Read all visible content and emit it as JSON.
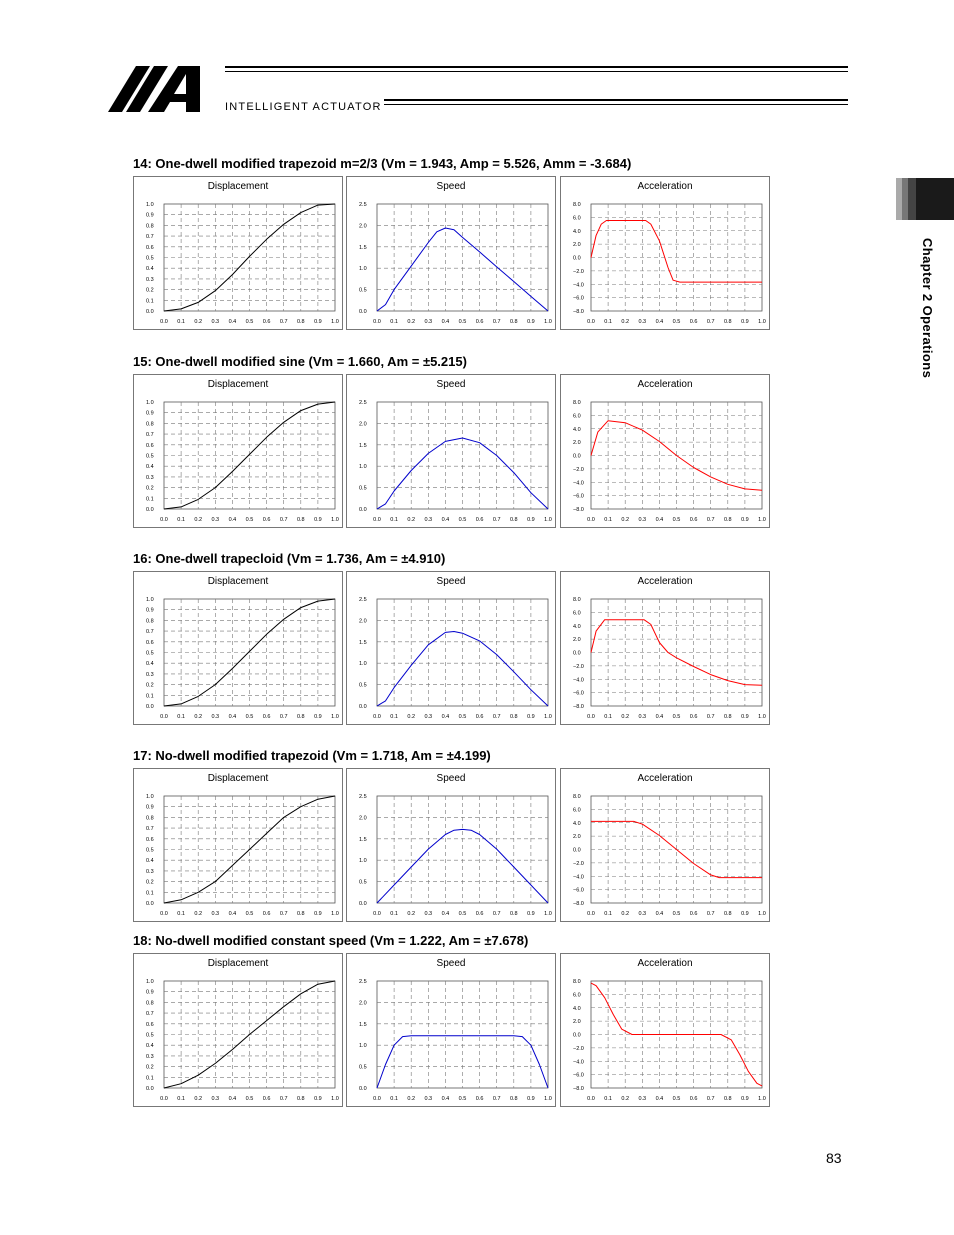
{
  "header": {
    "brand_text": "INTELLIGENT ACTUATOR",
    "logo_icon": "iai-logo-icon"
  },
  "sidebar": {
    "chapter_label": "Chapter 2 Operations"
  },
  "page_number": "83",
  "sections": [
    {
      "title": "14: One-dwell modified trapezoid m=2/3 (Vm = 1.943, Amp = 5.526, Amm = -3.684)"
    },
    {
      "title": "15: One-dwell modified sine (Vm = 1.660, Am = ±5.215)"
    },
    {
      "title": "16: One-dwell trapecloid (Vm = 1.736, Am = ±4.910)"
    },
    {
      "title": "17: No-dwell modified trapezoid (Vm = 1.718, Am = ±4.199)"
    },
    {
      "title": "18: No-dwell modified constant speed (Vm = 1.222, Am = ±7.678)"
    }
  ],
  "chart_data": [
    {
      "type": "line",
      "title": "Displacement",
      "xlim": [
        0,
        1
      ],
      "ylim": [
        0,
        1
      ],
      "color": "#000000",
      "xticks": [
        "0.0",
        "0.1",
        "0.2",
        "0.3",
        "0.4",
        "0.5",
        "0.6",
        "0.7",
        "0.8",
        "0.9",
        "1.0"
      ],
      "yticks": [
        "0.0",
        "0.1",
        "0.2",
        "0.3",
        "0.4",
        "0.5",
        "0.6",
        "0.7",
        "0.8",
        "0.9",
        "1.0"
      ],
      "x": [
        0,
        0.1,
        0.2,
        0.3,
        0.4,
        0.5,
        0.6,
        0.7,
        0.8,
        0.9,
        1.0
      ],
      "y": [
        0,
        0.02,
        0.08,
        0.19,
        0.34,
        0.51,
        0.67,
        0.81,
        0.92,
        0.99,
        1.0
      ]
    },
    {
      "type": "line",
      "title": "Speed",
      "xlim": [
        0,
        1
      ],
      "ylim": [
        0,
        2.5
      ],
      "color": "#0000cc",
      "xticks": [
        "0.0",
        "0.1",
        "0.2",
        "0.3",
        "0.4",
        "0.5",
        "0.6",
        "0.7",
        "0.8",
        "0.9",
        "1.0"
      ],
      "yticks": [
        "0.0",
        "0.5",
        "1.0",
        "1.5",
        "2.0",
        "2.5"
      ],
      "x": [
        0,
        0.05,
        0.1,
        0.2,
        0.3,
        0.35,
        0.4,
        0.45,
        0.5,
        0.6,
        0.7,
        0.8,
        0.9,
        1.0
      ],
      "y": [
        0,
        0.15,
        0.5,
        1.05,
        1.6,
        1.85,
        1.94,
        1.9,
        1.72,
        1.38,
        1.03,
        0.69,
        0.34,
        0
      ]
    },
    {
      "type": "line",
      "title": "Acceleration",
      "xlim": [
        0,
        1
      ],
      "ylim": [
        -8,
        8
      ],
      "color": "#ff0000",
      "xticks": [
        "0.0",
        "0.1",
        "0.2",
        "0.3",
        "0.4",
        "0.5",
        "0.6",
        "0.7",
        "0.8",
        "0.9",
        "1.0"
      ],
      "yticks": [
        "8.0",
        "6.0",
        "4.0",
        "2.0",
        "0.0",
        "−2.0",
        "−4.0",
        "−6.0",
        "−8.0"
      ],
      "x": [
        0,
        0.03,
        0.06,
        0.09,
        0.32,
        0.35,
        0.4,
        0.45,
        0.48,
        0.52,
        0.6,
        0.8,
        1.0
      ],
      "y": [
        0,
        3.3,
        5.0,
        5.53,
        5.53,
        5.0,
        2.5,
        -1.5,
        -3.4,
        -3.68,
        -3.68,
        -3.68,
        -3.68
      ]
    },
    {
      "type": "line",
      "title": "Displacement",
      "xlim": [
        0,
        1
      ],
      "ylim": [
        0,
        1
      ],
      "color": "#000000",
      "xticks": [
        "0.0",
        "0.1",
        "0.2",
        "0.3",
        "0.4",
        "0.5",
        "0.6",
        "0.7",
        "0.8",
        "0.9",
        "1.0"
      ],
      "yticks": [
        "0.0",
        "0.1",
        "0.2",
        "0.3",
        "0.4",
        "0.5",
        "0.6",
        "0.7",
        "0.8",
        "0.9",
        "1.0"
      ],
      "x": [
        0,
        0.1,
        0.2,
        0.3,
        0.4,
        0.5,
        0.6,
        0.7,
        0.8,
        0.9,
        1.0
      ],
      "y": [
        0,
        0.02,
        0.09,
        0.2,
        0.35,
        0.51,
        0.67,
        0.81,
        0.92,
        0.98,
        1.0
      ]
    },
    {
      "type": "line",
      "title": "Speed",
      "xlim": [
        0,
        1
      ],
      "ylim": [
        0,
        2.5
      ],
      "color": "#0000cc",
      "xticks": [
        "0.0",
        "0.1",
        "0.2",
        "0.3",
        "0.4",
        "0.5",
        "0.6",
        "0.7",
        "0.8",
        "0.9",
        "1.0"
      ],
      "yticks": [
        "0.0",
        "0.5",
        "1.0",
        "1.5",
        "2.0",
        "2.5"
      ],
      "x": [
        0,
        0.05,
        0.1,
        0.2,
        0.3,
        0.4,
        0.5,
        0.6,
        0.7,
        0.8,
        0.9,
        1.0
      ],
      "y": [
        0,
        0.12,
        0.42,
        0.9,
        1.3,
        1.58,
        1.66,
        1.55,
        1.25,
        0.85,
        0.38,
        0
      ]
    },
    {
      "type": "line",
      "title": "Acceleration",
      "xlim": [
        0,
        1
      ],
      "ylim": [
        -8,
        8
      ],
      "color": "#ff0000",
      "xticks": [
        "0.0",
        "0.1",
        "0.2",
        "0.3",
        "0.4",
        "0.5",
        "0.6",
        "0.7",
        "0.8",
        "0.9",
        "1.0"
      ],
      "yticks": [
        "8.0",
        "6.0",
        "4.0",
        "2.0",
        "0.0",
        "−2.0",
        "−4.0",
        "−6.0",
        "−8.0"
      ],
      "x": [
        0,
        0.04,
        0.1,
        0.2,
        0.3,
        0.4,
        0.5,
        0.6,
        0.7,
        0.8,
        0.9,
        1.0
      ],
      "y": [
        0,
        3.5,
        5.2,
        4.9,
        3.8,
        2.1,
        0,
        -1.8,
        -3.2,
        -4.3,
        -5.0,
        -5.2
      ]
    },
    {
      "type": "line",
      "title": "Displacement",
      "xlim": [
        0,
        1
      ],
      "ylim": [
        0,
        1
      ],
      "color": "#000000",
      "xticks": [
        "0.0",
        "0.1",
        "0.2",
        "0.3",
        "0.4",
        "0.5",
        "0.6",
        "0.7",
        "0.8",
        "0.9",
        "1.0"
      ],
      "yticks": [
        "0.0",
        "0.1",
        "0.2",
        "0.3",
        "0.4",
        "0.5",
        "0.6",
        "0.7",
        "0.8",
        "0.9",
        "1.0"
      ],
      "x": [
        0,
        0.1,
        0.2,
        0.3,
        0.4,
        0.5,
        0.6,
        0.7,
        0.8,
        0.9,
        1.0
      ],
      "y": [
        0,
        0.02,
        0.09,
        0.2,
        0.35,
        0.51,
        0.67,
        0.81,
        0.92,
        0.98,
        1.0
      ]
    },
    {
      "type": "line",
      "title": "Speed",
      "xlim": [
        0,
        1
      ],
      "ylim": [
        0,
        2.5
      ],
      "color": "#0000cc",
      "xticks": [
        "0.0",
        "0.1",
        "0.2",
        "0.3",
        "0.4",
        "0.5",
        "0.6",
        "0.7",
        "0.8",
        "0.9",
        "1.0"
      ],
      "yticks": [
        "0.0",
        "0.5",
        "1.0",
        "1.5",
        "2.0",
        "2.5"
      ],
      "x": [
        0,
        0.05,
        0.1,
        0.2,
        0.3,
        0.4,
        0.45,
        0.5,
        0.6,
        0.7,
        0.8,
        0.9,
        1.0
      ],
      "y": [
        0,
        0.12,
        0.43,
        0.95,
        1.43,
        1.72,
        1.74,
        1.7,
        1.52,
        1.2,
        0.8,
        0.38,
        0
      ]
    },
    {
      "type": "line",
      "title": "Acceleration",
      "xlim": [
        0,
        1
      ],
      "ylim": [
        -8,
        8
      ],
      "color": "#ff0000",
      "xticks": [
        "0.0",
        "0.1",
        "0.2",
        "0.3",
        "0.4",
        "0.5",
        "0.6",
        "0.7",
        "0.8",
        "0.9",
        "1.0"
      ],
      "yticks": [
        "8.0",
        "6.0",
        "4.0",
        "2.0",
        "0.0",
        "−2.0",
        "−4.0",
        "−6.0",
        "−8.0"
      ],
      "x": [
        0,
        0.03,
        0.08,
        0.31,
        0.35,
        0.4,
        0.45,
        0.5,
        0.6,
        0.7,
        0.8,
        0.9,
        1.0
      ],
      "y": [
        0,
        3.2,
        4.9,
        4.9,
        4.2,
        1.5,
        0,
        -0.8,
        -2.1,
        -3.3,
        -4.2,
        -4.8,
        -4.91
      ]
    },
    {
      "type": "line",
      "title": "Displacement",
      "xlim": [
        0,
        1
      ],
      "ylim": [
        0,
        1
      ],
      "color": "#000000",
      "xticks": [
        "0.0",
        "0.1",
        "0.2",
        "0.3",
        "0.4",
        "0.5",
        "0.6",
        "0.7",
        "0.8",
        "0.9",
        "1.0"
      ],
      "yticks": [
        "0.0",
        "0.1",
        "0.2",
        "0.3",
        "0.4",
        "0.5",
        "0.6",
        "0.7",
        "0.8",
        "0.9",
        "1.0"
      ],
      "x": [
        0,
        0.1,
        0.2,
        0.3,
        0.4,
        0.5,
        0.6,
        0.7,
        0.8,
        0.9,
        1.0
      ],
      "y": [
        0,
        0.03,
        0.1,
        0.2,
        0.35,
        0.5,
        0.65,
        0.8,
        0.9,
        0.97,
        1.0
      ]
    },
    {
      "type": "line",
      "title": "Speed",
      "xlim": [
        0,
        1
      ],
      "ylim": [
        0,
        2.5
      ],
      "color": "#0000cc",
      "xticks": [
        "0.0",
        "0.1",
        "0.2",
        "0.3",
        "0.4",
        "0.5",
        "0.6",
        "0.7",
        "0.8",
        "0.9",
        "1.0"
      ],
      "yticks": [
        "0.0",
        "0.5",
        "1.0",
        "1.5",
        "2.0",
        "2.5"
      ],
      "x": [
        0,
        0.1,
        0.2,
        0.3,
        0.4,
        0.45,
        0.5,
        0.55,
        0.6,
        0.7,
        0.8,
        0.9,
        1.0
      ],
      "y": [
        0,
        0.42,
        0.84,
        1.26,
        1.6,
        1.7,
        1.72,
        1.7,
        1.6,
        1.26,
        0.84,
        0.42,
        0
      ]
    },
    {
      "type": "line",
      "title": "Acceleration",
      "xlim": [
        0,
        1
      ],
      "ylim": [
        -8,
        8
      ],
      "color": "#ff0000",
      "xticks": [
        "0.0",
        "0.1",
        "0.2",
        "0.3",
        "0.4",
        "0.5",
        "0.6",
        "0.7",
        "0.8",
        "0.9",
        "1.0"
      ],
      "yticks": [
        "8.0",
        "6.0",
        "4.0",
        "2.0",
        "0.0",
        "−2.0",
        "−4.0",
        "−6.0",
        "−8.0"
      ],
      "x": [
        0,
        0.1,
        0.2,
        0.25,
        0.3,
        0.4,
        0.5,
        0.6,
        0.7,
        0.75,
        0.8,
        0.9,
        1.0
      ],
      "y": [
        4.2,
        4.2,
        4.2,
        4.2,
        3.8,
        2.1,
        0,
        -2.1,
        -3.8,
        -4.2,
        -4.2,
        -4.2,
        -4.2
      ]
    },
    {
      "type": "line",
      "title": "Displacement",
      "xlim": [
        0,
        1
      ],
      "ylim": [
        0,
        1
      ],
      "color": "#000000",
      "xticks": [
        "0.0",
        "0.1",
        "0.2",
        "0.3",
        "0.4",
        "0.5",
        "0.6",
        "0.7",
        "0.8",
        "0.9",
        "1.0"
      ],
      "yticks": [
        "0.0",
        "0.1",
        "0.2",
        "0.3",
        "0.4",
        "0.5",
        "0.6",
        "0.7",
        "0.8",
        "0.9",
        "1.0"
      ],
      "x": [
        0,
        0.1,
        0.2,
        0.3,
        0.4,
        0.5,
        0.6,
        0.7,
        0.8,
        0.9,
        1.0
      ],
      "y": [
        0,
        0.04,
        0.12,
        0.23,
        0.36,
        0.5,
        0.63,
        0.76,
        0.88,
        0.97,
        1.0
      ]
    },
    {
      "type": "line",
      "title": "Speed",
      "xlim": [
        0,
        1
      ],
      "ylim": [
        0,
        2.5
      ],
      "color": "#0000cc",
      "xticks": [
        "0.0",
        "0.1",
        "0.2",
        "0.3",
        "0.4",
        "0.5",
        "0.6",
        "0.7",
        "0.8",
        "0.9",
        "1.0"
      ],
      "yticks": [
        "0.0",
        "0.5",
        "1.0",
        "1.5",
        "2.0",
        "2.5"
      ],
      "x": [
        0,
        0.05,
        0.1,
        0.15,
        0.2,
        0.5,
        0.8,
        0.85,
        0.9,
        0.95,
        1.0
      ],
      "y": [
        0,
        0.55,
        1.0,
        1.2,
        1.222,
        1.222,
        1.222,
        1.2,
        1.0,
        0.55,
        0
      ]
    },
    {
      "type": "line",
      "title": "Acceleration",
      "xlim": [
        0,
        1
      ],
      "ylim": [
        -8,
        8
      ],
      "color": "#ff0000",
      "xticks": [
        "0.0",
        "0.1",
        "0.2",
        "0.3",
        "0.4",
        "0.5",
        "0.6",
        "0.7",
        "0.8",
        "0.9",
        "1.0"
      ],
      "yticks": [
        "8.0",
        "6.0",
        "4.0",
        "2.0",
        "0.0",
        "−2.0",
        "−4.0",
        "−6.0",
        "−8.0"
      ],
      "x": [
        0,
        0.03,
        0.08,
        0.13,
        0.18,
        0.24,
        0.5,
        0.76,
        0.82,
        0.87,
        0.92,
        0.97,
        1.0
      ],
      "y": [
        7.68,
        7.3,
        5.5,
        3.0,
        0.8,
        0,
        0,
        0,
        -0.8,
        -3.0,
        -5.5,
        -7.3,
        -7.68
      ]
    }
  ]
}
